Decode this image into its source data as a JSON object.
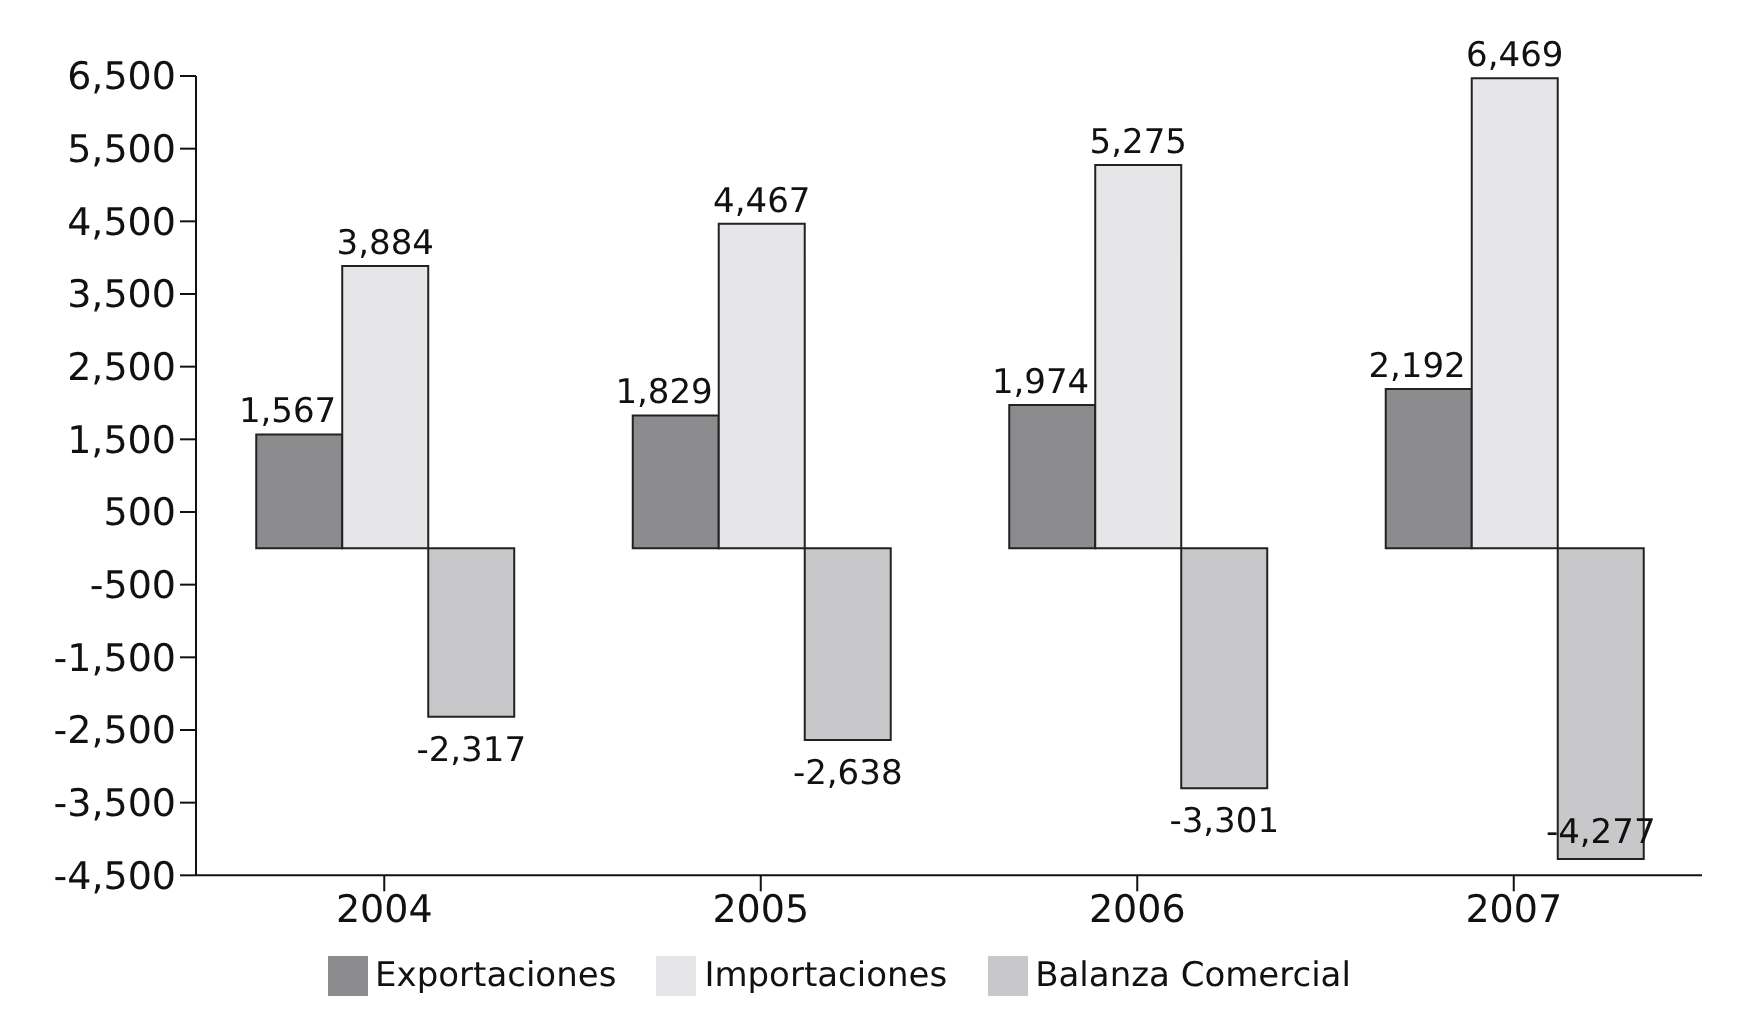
{
  "chart_data": {
    "type": "bar",
    "categories": [
      "2004",
      "2005",
      "2006",
      "2007"
    ],
    "series": [
      {
        "name": "Exportaciones",
        "color": "#8c8c8e",
        "values": [
          1567,
          1829,
          1974,
          2192
        ],
        "value_labels": [
          "1,567",
          "1,829",
          "1,974",
          "2,192"
        ]
      },
      {
        "name": "Importaciones",
        "color": "#e6e6e8",
        "values": [
          3884,
          4467,
          5275,
          6469
        ],
        "value_labels": [
          "3,884",
          "4,467",
          "5,275",
          "6,469"
        ]
      },
      {
        "name": "Balanza Comercial",
        "color": "#c8c8ca",
        "values": [
          -2317,
          -2638,
          -3301,
          -4277
        ],
        "value_labels": [
          "-2,317",
          "-2,638",
          "-3,301",
          "-4,277"
        ]
      }
    ],
    "ylim": [
      -4500,
      6500
    ],
    "yticks": [
      {
        "value": -4500,
        "label": "-4,500"
      },
      {
        "value": -3500,
        "label": "-3,500"
      },
      {
        "value": -2500,
        "label": "-2,500"
      },
      {
        "value": -1500,
        "label": "-1,500"
      },
      {
        "value": -500,
        "label": "-500"
      },
      {
        "value": 500,
        "label": "500"
      },
      {
        "value": 1500,
        "label": "1,500"
      },
      {
        "value": 2500,
        "label": "2,500"
      },
      {
        "value": 3500,
        "label": "3,500"
      },
      {
        "value": 4500,
        "label": "4,500"
      },
      {
        "value": 5500,
        "label": "5,500"
      },
      {
        "value": 6500,
        "label": "6,500"
      }
    ],
    "grid": false,
    "legend": "bottom"
  }
}
